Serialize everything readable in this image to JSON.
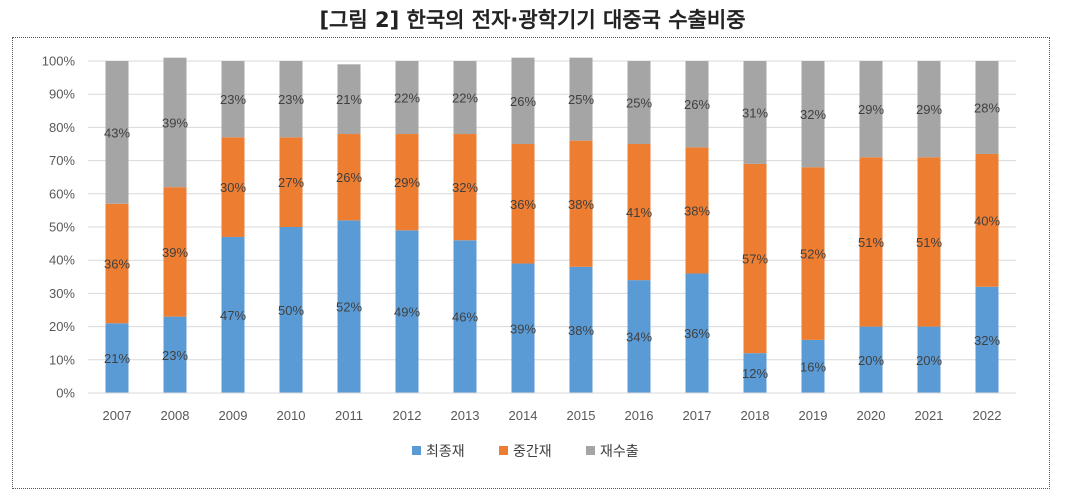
{
  "chart_data": {
    "type": "bar",
    "stacked": true,
    "percent": true,
    "title": "[그림 2] 한국의 전자·광학기기 대중국 수출비중",
    "xlabel": "",
    "ylabel": "",
    "ylim": [
      0,
      100
    ],
    "yticks": [
      "0%",
      "10%",
      "20%",
      "30%",
      "40%",
      "50%",
      "60%",
      "70%",
      "80%",
      "90%",
      "100%"
    ],
    "grid": true,
    "legend_position": "bottom",
    "categories": [
      "2007",
      "2008",
      "2009",
      "2010",
      "2011",
      "2012",
      "2013",
      "2014",
      "2015",
      "2016",
      "2017",
      "2018",
      "2019",
      "2020",
      "2021",
      "2022"
    ],
    "series": [
      {
        "name": "최종재",
        "color": "#5b9bd5",
        "values": [
          21,
          23,
          47,
          50,
          52,
          49,
          46,
          39,
          38,
          34,
          36,
          12,
          16,
          20,
          20,
          32
        ],
        "labels": [
          "21%",
          "23%",
          "47%",
          "50%",
          "52%",
          "49%",
          "46%",
          "39%",
          "38%",
          "34%",
          "36%",
          "12%",
          "16%",
          "20%",
          "20%",
          "32%"
        ]
      },
      {
        "name": "중간재",
        "color": "#ed7d31",
        "values": [
          36,
          39,
          30,
          27,
          26,
          29,
          32,
          36,
          38,
          41,
          38,
          57,
          52,
          51,
          51,
          40
        ],
        "labels": [
          "36%",
          "39%",
          "30%",
          "27%",
          "26%",
          "29%",
          "32%",
          "36%",
          "38%",
          "41%",
          "38%",
          "57%",
          "52%",
          "51%",
          "51%",
          "40%"
        ]
      },
      {
        "name": "재수출",
        "color": "#a5a5a5",
        "values": [
          43,
          39,
          23,
          23,
          21,
          22,
          22,
          26,
          25,
          25,
          26,
          31,
          32,
          29,
          29,
          28
        ],
        "labels": [
          "43%",
          "39%",
          "23%",
          "23%",
          "21%",
          "22%",
          "22%",
          "26%",
          "25%",
          "25%",
          "26%",
          "31%",
          "32%",
          "29%",
          "29%",
          "28%"
        ]
      }
    ]
  }
}
